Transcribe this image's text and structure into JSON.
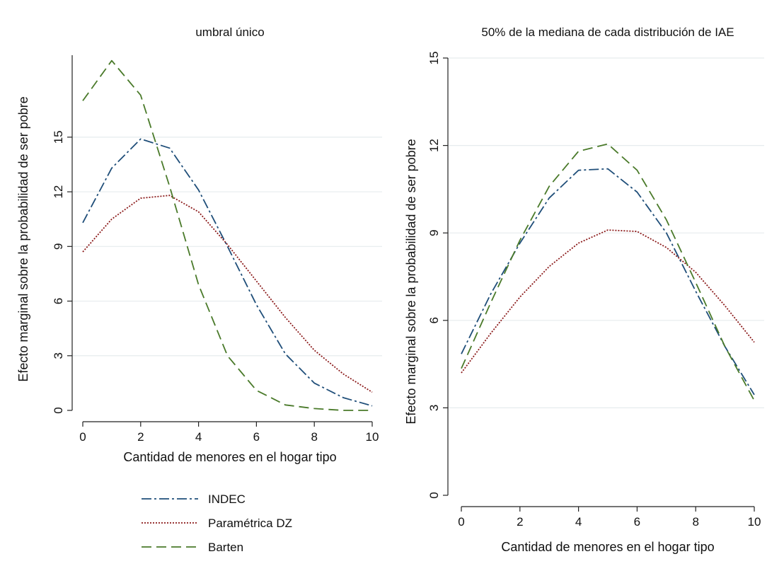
{
  "chart_data": [
    {
      "type": "line",
      "title": "umbral único",
      "xlabel": "Cantidad de menores en el hogar tipo",
      "ylabel": "Efecto marginal sobre la probabilidad de ser pobre",
      "x": [
        0,
        1,
        2,
        3,
        4,
        5,
        6,
        7,
        8,
        9,
        10
      ],
      "xticks": [
        0,
        2,
        4,
        6,
        8,
        10
      ],
      "xticklabels": [
        "0",
        "2",
        "4",
        "6",
        "8",
        "10"
      ],
      "yticks": [
        0,
        3,
        6,
        9,
        12,
        15
      ],
      "yticklabels": [
        "0",
        "3",
        "6",
        "9",
        "12",
        "15"
      ],
      "xlim": [
        0,
        10
      ],
      "ylim": [
        0,
        19.5
      ],
      "grid": true,
      "legend": "bottom",
      "series": [
        {
          "name": "INDEC",
          "style": "dashdot",
          "color": "#1f4e79",
          "values": [
            10.3,
            13.3,
            14.9,
            14.4,
            12.1,
            9.0,
            5.8,
            3.1,
            1.5,
            0.7,
            0.25
          ]
        },
        {
          "name": "Paramétrica DZ",
          "style": "dotted",
          "color": "#8b1a1a",
          "values": [
            8.7,
            10.5,
            11.65,
            11.8,
            10.9,
            9.1,
            7.1,
            5.1,
            3.3,
            2.0,
            1.0
          ]
        },
        {
          "name": "Barten",
          "style": "dashed",
          "color": "#4a7a2a",
          "values": [
            17.0,
            19.2,
            17.3,
            12.3,
            6.9,
            3.0,
            1.1,
            0.3,
            0.1,
            0.0,
            0.0
          ]
        }
      ]
    },
    {
      "type": "line",
      "title": "50% de la mediana de cada distribución de IAE",
      "xlabel": "Cantidad de menores en el hogar tipo",
      "ylabel": "Efecto marginal sobre la probabilidad de ser pobre",
      "x": [
        0,
        1,
        2,
        3,
        4,
        5,
        6,
        7,
        8,
        9,
        10
      ],
      "xticks": [
        0,
        2,
        4,
        6,
        8,
        10
      ],
      "xticklabels": [
        "0",
        "2",
        "4",
        "6",
        "8",
        "10"
      ],
      "yticks": [
        0,
        3,
        6,
        9,
        12,
        15
      ],
      "yticklabels": [
        "0",
        "3",
        "6",
        "9",
        "12",
        "15"
      ],
      "xlim": [
        0,
        10
      ],
      "ylim": [
        0,
        15
      ],
      "grid": true,
      "series": [
        {
          "name": "INDEC",
          "style": "dashdot",
          "color": "#1f4e79",
          "values": [
            4.85,
            6.9,
            8.65,
            10.2,
            11.15,
            11.2,
            10.4,
            9.0,
            7.0,
            5.1,
            3.45
          ]
        },
        {
          "name": "Paramétrica DZ",
          "style": "dotted",
          "color": "#8b1a1a",
          "values": [
            4.2,
            5.55,
            6.8,
            7.85,
            8.65,
            9.1,
            9.05,
            8.5,
            7.65,
            6.5,
            5.25
          ]
        },
        {
          "name": "Barten",
          "style": "dashed",
          "color": "#4a7a2a",
          "values": [
            4.35,
            6.6,
            8.75,
            10.6,
            11.8,
            12.05,
            11.15,
            9.45,
            7.3,
            5.1,
            3.25
          ]
        }
      ]
    }
  ],
  "legend": {
    "items": [
      {
        "label": "INDEC",
        "style": "dashdot",
        "color": "#1f4e79"
      },
      {
        "label": "Paramétrica DZ",
        "style": "dotted",
        "color": "#8b1a1a"
      },
      {
        "label": "Barten",
        "style": "dashed",
        "color": "#4a7a2a"
      }
    ]
  }
}
